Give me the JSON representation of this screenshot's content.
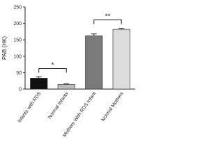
{
  "chart_data": {
    "type": "bar",
    "ylabel": "PAB (HK)",
    "categories": [
      "Infants with RDS",
      "Normal Infants",
      "Mothers With RDS Infant",
      "Normal Mothers"
    ],
    "values": [
      33,
      14,
      162,
      182
    ],
    "errors": [
      4,
      2,
      6,
      3
    ],
    "colors": [
      "#111111",
      "#bdbdbd",
      "#7a7a7a",
      "#dcdcdc"
    ],
    "ylim": [
      0,
      250
    ],
    "yticks": [
      0,
      50,
      100,
      150,
      200,
      250
    ],
    "annotations": [
      "*",
      "**"
    ]
  }
}
